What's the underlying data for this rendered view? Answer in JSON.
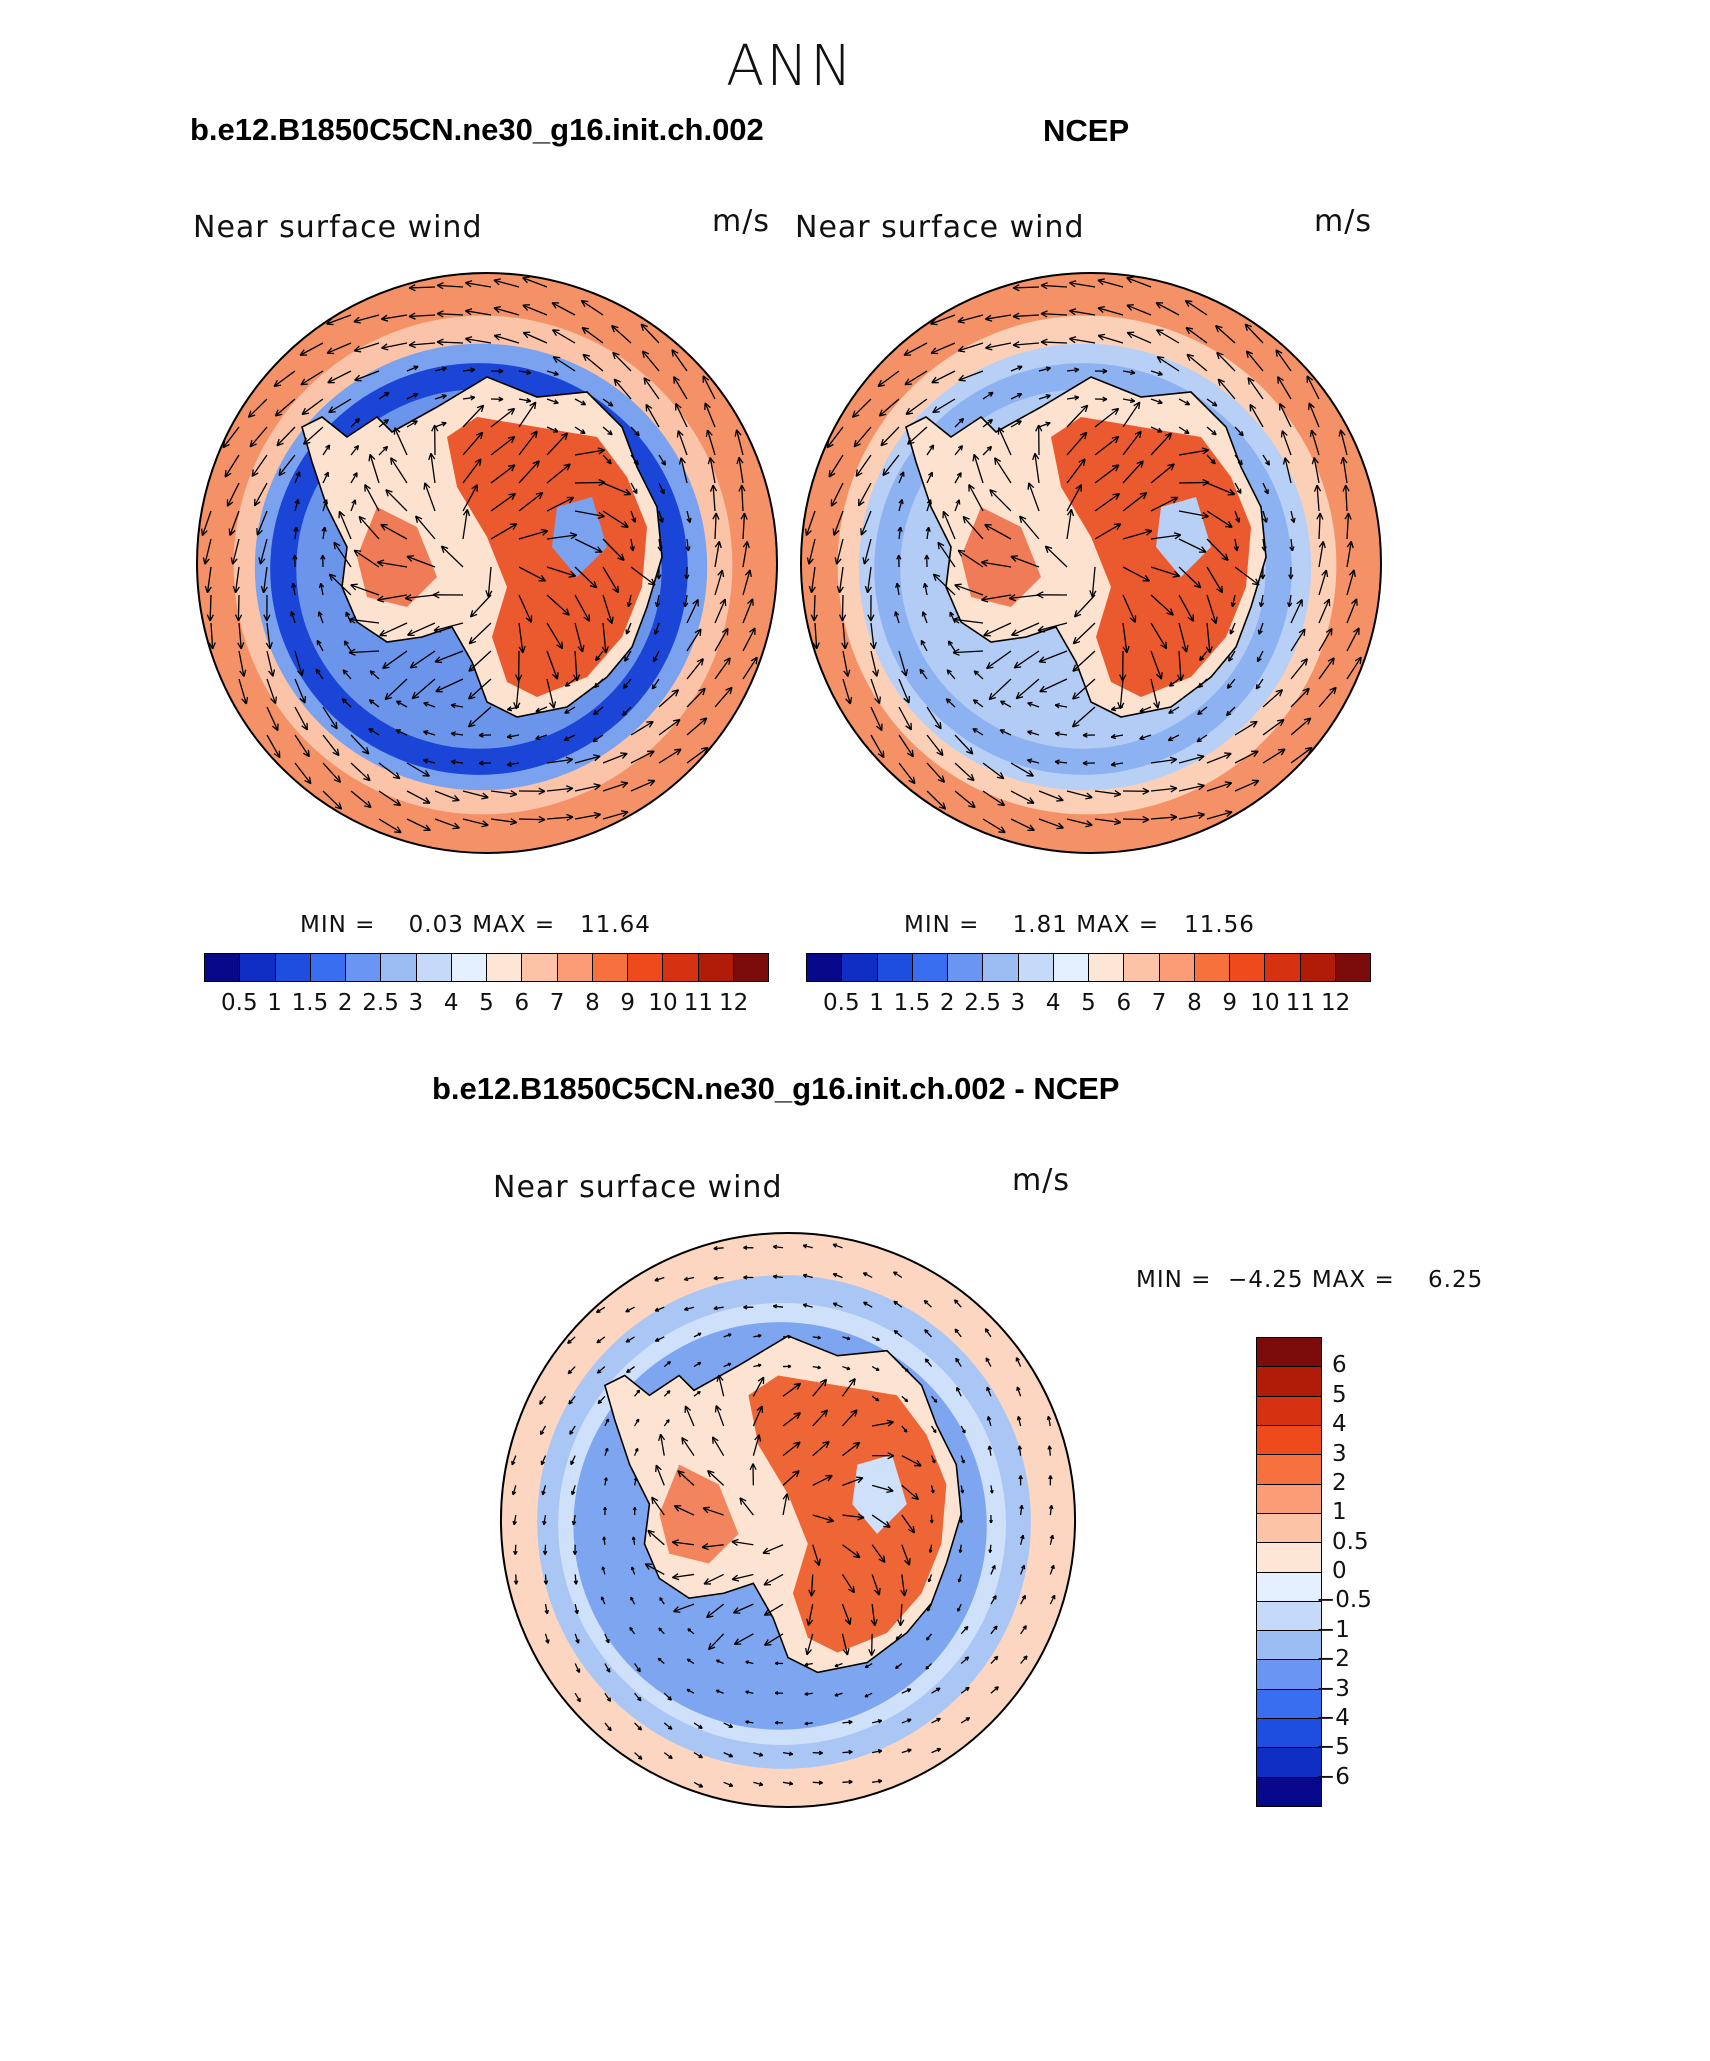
{
  "figure": {
    "season": "ANN"
  },
  "panels": [
    {
      "id": "model",
      "case_title": "b.e12.B1850C5CN.ne30_g16.init.ch.002",
      "variable": "Near surface wind",
      "units": "m/s",
      "min_label": "MIN =",
      "min_value": "0.03",
      "max_label": "MAX =",
      "max_value": "11.64",
      "colorbar_ticks": [
        "0.5",
        "1",
        "1.5",
        "2",
        "2.5",
        "3",
        "4",
        "5",
        "6",
        "7",
        "8",
        "9",
        "10",
        "11",
        "12"
      ],
      "colorbar_colors": [
        "#08088a",
        "#0f2ec4",
        "#1e4ee0",
        "#3a6ef0",
        "#6b95f2",
        "#9cbcf4",
        "#c4daf8",
        "#e4efff",
        "#fde6d6",
        "#fcc3a6",
        "#fb9c76",
        "#f7713f",
        "#ef4a1b",
        "#d63211",
        "#b01c08",
        "#7c0c0c"
      ],
      "field_colors": {
        "ring_outer": "#f49167",
        "ring_mid": "#fbc4a8",
        "trough": "#1a45d6",
        "trough_edge": "#7aa2ee",
        "land_high": "#ea5a2e",
        "land_low": "#fde2d0"
      }
    },
    {
      "id": "obs",
      "case_title": "NCEP",
      "variable": "Near surface wind",
      "units": "m/s",
      "min_label": "MIN =",
      "min_value": "1.81",
      "max_label": "MAX =",
      "max_value": "11.56",
      "colorbar_ticks": [
        "0.5",
        "1",
        "1.5",
        "2",
        "2.5",
        "3",
        "4",
        "5",
        "6",
        "7",
        "8",
        "9",
        "10",
        "11",
        "12"
      ],
      "colorbar_colors": [
        "#08088a",
        "#0f2ec4",
        "#1e4ee0",
        "#3a6ef0",
        "#6b95f2",
        "#9cbcf4",
        "#c4daf8",
        "#e4efff",
        "#fde6d6",
        "#fcc3a6",
        "#fb9c76",
        "#f7713f",
        "#ef4a1b",
        "#d63211",
        "#b01c08",
        "#7c0c0c"
      ],
      "field_colors": {
        "ring_outer": "#f49167",
        "ring_mid": "#fcd0b6",
        "trough": "#8db2f2",
        "trough_edge": "#b8d0f6",
        "land_high": "#ea5a2e",
        "land_low": "#fde2d0"
      }
    },
    {
      "id": "diff",
      "case_title": "b.e12.B1850C5CN.ne30_g16.init.ch.002 - NCEP",
      "variable": "Near surface wind",
      "units": "m/s",
      "min_label": "MIN =",
      "min_value": "−4.25",
      "max_label": "MAX =",
      "max_value": "6.25",
      "colorbar_ticks": [
        "6",
        "5",
        "4",
        "3",
        "2",
        "1",
        "0.5",
        "0",
        "−0.5",
        "−1",
        "−2",
        "−3",
        "−4",
        "−5",
        "−6"
      ],
      "colorbar_colors": [
        "#7c0c0c",
        "#b01c08",
        "#d63211",
        "#ef4a1b",
        "#f7713f",
        "#fb9c76",
        "#fcc3a6",
        "#fde6d6",
        "#e4efff",
        "#c4daf8",
        "#9cbcf4",
        "#6b95f2",
        "#3a6ef0",
        "#1e4ee0",
        "#0f2ec4",
        "#08088a"
      ],
      "field_colors": {
        "ring_outer": "#fcd6c0",
        "ring_mid": "#a9c6f5",
        "trough": "#7ea5ef",
        "trough_edge": "#cfe0fa",
        "land_high": "#ee6536",
        "land_low": "#fde4d2"
      }
    }
  ]
}
